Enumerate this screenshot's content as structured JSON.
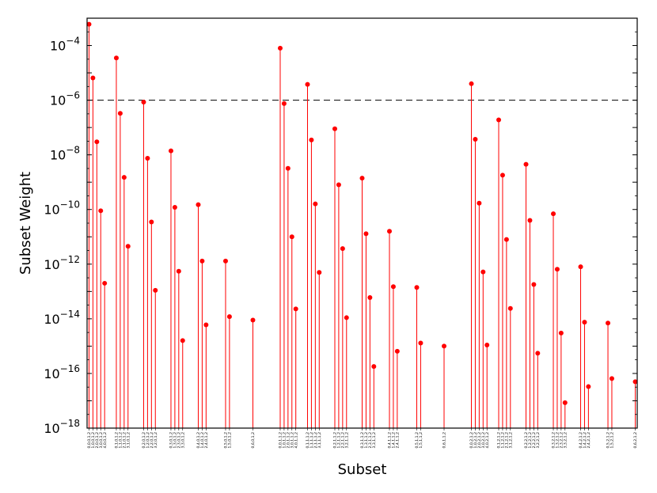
{
  "chart_data": {
    "type": "stem",
    "xlabel": "Subset",
    "ylabel": "Subset Weight",
    "yscale": "log",
    "ylim": [
      1e-18,
      0.001
    ],
    "ytick_labels": [
      {
        "base": "10",
        "exp": "−4",
        "value": 0.0001
      },
      {
        "base": "10",
        "exp": "−6",
        "value": 1e-06
      },
      {
        "base": "10",
        "exp": "−8",
        "value": 1e-08
      },
      {
        "base": "10",
        "exp": "−10",
        "value": 1e-10
      },
      {
        "base": "10",
        "exp": "−12",
        "value": 1e-12
      },
      {
        "base": "10",
        "exp": "−14",
        "value": 1e-14
      },
      {
        "base": "10",
        "exp": "−16",
        "value": 1e-16
      },
      {
        "base": "10",
        "exp": "−18",
        "value": 1e-18
      }
    ],
    "threshold": 1e-06,
    "stem_color": "#ff0000",
    "marker_color": "#ff0000",
    "threshold_color": "#000000",
    "grid": false,
    "points": [
      {
        "x": 1,
        "label": "0,0,0,1,2",
        "value": 0.0006
      },
      {
        "x": 2,
        "label": "1,0,0,1,2",
        "value": 6.5e-06
      },
      {
        "x": 3,
        "label": "2,0,0,1,2",
        "value": 3e-08
      },
      {
        "x": 4,
        "label": "3,0,0,1,2",
        "value": 9e-11
      },
      {
        "x": 5,
        "label": "4,0,0,1,2",
        "value": 2e-13
      },
      {
        "x": 8,
        "label": "0,1,0,1,2",
        "value": 3.5e-05
      },
      {
        "x": 9,
        "label": "1,1,0,1,2",
        "value": 3.3e-07
      },
      {
        "x": 10,
        "label": "2,1,0,1,2",
        "value": 1.5e-09
      },
      {
        "x": 11,
        "label": "3,1,0,1,2",
        "value": 4.5e-12
      },
      {
        "x": 15,
        "label": "0,2,0,1,2",
        "value": 8.5e-07
      },
      {
        "x": 16,
        "label": "1,2,0,1,2",
        "value": 7.5e-09
      },
      {
        "x": 17,
        "label": "2,2,0,1,2",
        "value": 3.5e-11
      },
      {
        "x": 18,
        "label": "3,2,0,1,2",
        "value": 1.1e-13
      },
      {
        "x": 22,
        "label": "0,3,0,1,2",
        "value": 1.4e-08
      },
      {
        "x": 23,
        "label": "1,3,0,1,2",
        "value": 1.2e-10
      },
      {
        "x": 24,
        "label": "2,3,0,1,2",
        "value": 5.5e-13
      },
      {
        "x": 25,
        "label": "3,3,0,1,2",
        "value": 1.6e-15
      },
      {
        "x": 29,
        "label": "0,4,0,1,2",
        "value": 1.5e-10
      },
      {
        "x": 30,
        "label": "1,4,0,1,2",
        "value": 1.3e-12
      },
      {
        "x": 31,
        "label": "2,4,0,1,2",
        "value": 6e-15
      },
      {
        "x": 36,
        "label": "0,5,0,1,2",
        "value": 1.3e-12
      },
      {
        "x": 37,
        "label": "1,5,0,1,2",
        "value": 1.2e-14
      },
      {
        "x": 43,
        "label": "0,6,0,1,2",
        "value": 9e-15
      },
      {
        "x": 50,
        "label": "0,0,1,1,2",
        "value": 8e-05
      },
      {
        "x": 51,
        "label": "1,0,1,1,2",
        "value": 7.5e-07
      },
      {
        "x": 52,
        "label": "2,0,1,1,2",
        "value": 3.2e-09
      },
      {
        "x": 53,
        "label": "3,0,1,1,2",
        "value": 1e-11
      },
      {
        "x": 54,
        "label": "4,0,1,1,2",
        "value": 2.3e-14
      },
      {
        "x": 57,
        "label": "0,1,1,1,2",
        "value": 3.8e-06
      },
      {
        "x": 58,
        "label": "1,1,1,1,2",
        "value": 3.5e-08
      },
      {
        "x": 59,
        "label": "2,1,1,1,2",
        "value": 1.6e-10
      },
      {
        "x": 60,
        "label": "3,1,1,1,2",
        "value": 5e-13
      },
      {
        "x": 64,
        "label": "0,2,1,1,2",
        "value": 9e-08
      },
      {
        "x": 65,
        "label": "1,2,1,1,2",
        "value": 8e-10
      },
      {
        "x": 66,
        "label": "2,2,1,1,2",
        "value": 3.7e-12
      },
      {
        "x": 67,
        "label": "3,2,1,1,2",
        "value": 1.1e-14
      },
      {
        "x": 71,
        "label": "0,3,1,1,2",
        "value": 1.4e-09
      },
      {
        "x": 72,
        "label": "1,3,1,1,2",
        "value": 1.3e-11
      },
      {
        "x": 73,
        "label": "2,3,1,1,2",
        "value": 6e-14
      },
      {
        "x": 74,
        "label": "3,3,1,1,2",
        "value": 1.8e-16
      },
      {
        "x": 78,
        "label": "0,4,1,1,2",
        "value": 1.6e-11
      },
      {
        "x": 79,
        "label": "1,4,1,1,2",
        "value": 1.5e-13
      },
      {
        "x": 80,
        "label": "2,4,1,1,2",
        "value": 6.5e-16
      },
      {
        "x": 85,
        "label": "0,5,1,1,2",
        "value": 1.4e-13
      },
      {
        "x": 86,
        "label": "1,5,1,1,2",
        "value": 1.3e-15
      },
      {
        "x": 92,
        "label": "0,6,1,1,2",
        "value": 1e-15
      },
      {
        "x": 99,
        "label": "0,0,2,1,2",
        "value": 4e-06
      },
      {
        "x": 100,
        "label": "1,0,2,1,2",
        "value": 3.7e-08
      },
      {
        "x": 101,
        "label": "2,0,2,1,2",
        "value": 1.7e-10
      },
      {
        "x": 102,
        "label": "3,0,2,1,2",
        "value": 5.2e-13
      },
      {
        "x": 103,
        "label": "4,0,2,1,2",
        "value": 1.1e-15
      },
      {
        "x": 106,
        "label": "0,1,2,1,2",
        "value": 1.9e-07
      },
      {
        "x": 107,
        "label": "1,1,2,1,2",
        "value": 1.8e-09
      },
      {
        "x": 108,
        "label": "2,1,2,1,2",
        "value": 8e-12
      },
      {
        "x": 109,
        "label": "3,1,2,1,2",
        "value": 2.4e-14
      },
      {
        "x": 113,
        "label": "0,2,2,1,2",
        "value": 4.5e-09
      },
      {
        "x": 114,
        "label": "1,2,2,1,2",
        "value": 4e-11
      },
      {
        "x": 115,
        "label": "2,2,2,1,2",
        "value": 1.8e-13
      },
      {
        "x": 116,
        "label": "3,2,2,1,2",
        "value": 5.5e-16
      },
      {
        "x": 120,
        "label": "0,3,2,1,2",
        "value": 7e-11
      },
      {
        "x": 121,
        "label": "1,3,2,1,2",
        "value": 6.5e-13
      },
      {
        "x": 122,
        "label": "2,3,2,1,2",
        "value": 3e-15
      },
      {
        "x": 123,
        "label": "3,3,2,1,2",
        "value": 8.5e-18
      },
      {
        "x": 127,
        "label": "0,4,2,1,2",
        "value": 8e-13
      },
      {
        "x": 128,
        "label": "1,4,2,1,2",
        "value": 7.5e-15
      },
      {
        "x": 129,
        "label": "2,4,2,1,2",
        "value": 3.3e-17
      },
      {
        "x": 134,
        "label": "0,5,2,1,2",
        "value": 7e-15
      },
      {
        "x": 135,
        "label": "1,5,2,1,2",
        "value": 6.5e-17
      },
      {
        "x": 141,
        "label": "0,6,2,1,2",
        "value": 5e-17
      }
    ]
  }
}
